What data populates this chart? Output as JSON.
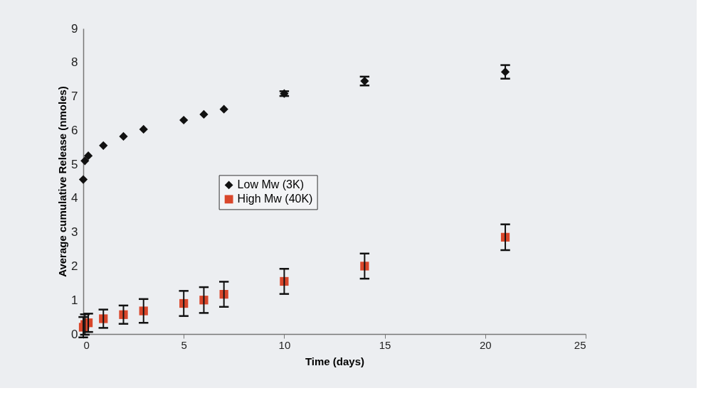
{
  "chart_data": {
    "type": "scatter",
    "xlabel": "Time (days)",
    "ylabel": "Average cumulative Release (nmoles)",
    "xlim": [
      0,
      25
    ],
    "xticks": [
      0,
      5,
      10,
      15,
      20,
      25
    ],
    "ylim": [
      0,
      9
    ],
    "yticks": [
      0,
      1,
      2,
      3,
      4,
      5,
      6,
      7,
      8,
      9
    ],
    "grid": false,
    "legend": "left",
    "series": [
      {
        "name": "Low Mw (3K)",
        "color": "#111111",
        "marker": "diamond",
        "x": [
          0,
          0.08,
          0.25,
          1,
          2,
          3,
          5,
          6,
          7,
          10,
          14,
          21
        ],
        "values": [
          4.55,
          5.1,
          5.25,
          5.55,
          5.82,
          6.03,
          6.3,
          6.47,
          6.62,
          7.08,
          7.45,
          7.72
        ],
        "errors": [
          null,
          null,
          null,
          null,
          null,
          null,
          null,
          null,
          null,
          0.07,
          0.13,
          0.2
        ]
      },
      {
        "name": "High Mw (40K)",
        "color": "#d9472b",
        "marker": "square",
        "x": [
          0,
          0.08,
          0.25,
          1,
          2,
          3,
          5,
          6,
          7,
          10,
          14,
          21
        ],
        "values": [
          0.2,
          0.28,
          0.33,
          0.45,
          0.57,
          0.68,
          0.9,
          1.0,
          1.17,
          1.55,
          2.0,
          2.85
        ],
        "errors": [
          0.3,
          0.3,
          0.27,
          0.27,
          0.27,
          0.35,
          0.37,
          0.38,
          0.37,
          0.37,
          0.37,
          0.38
        ]
      }
    ]
  }
}
